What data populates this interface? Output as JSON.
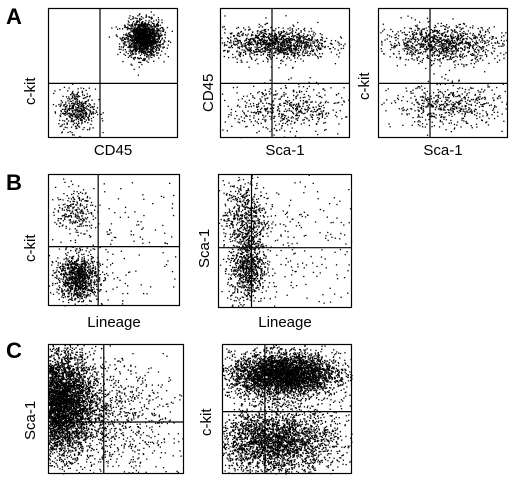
{
  "panels": [
    {
      "letter": "A"
    },
    {
      "letter": "B"
    },
    {
      "letter": "C"
    }
  ],
  "chart_data": [
    {
      "type": "scatter",
      "panel": "A",
      "xlabel": "CD45",
      "ylabel": "c-kit",
      "quadrant_gates": {
        "x": 0.4,
        "y": 0.42
      },
      "populations": [
        {
          "cx": 0.73,
          "cy": 0.77,
          "sx": 0.07,
          "sy": 0.07,
          "n": 1500
        },
        {
          "cx": 0.22,
          "cy": 0.22,
          "sx": 0.07,
          "sy": 0.08,
          "n": 420
        }
      ]
    },
    {
      "type": "scatter",
      "panel": "A",
      "xlabel": "Sca-1",
      "ylabel": "CD45",
      "quadrant_gates": {
        "x": 0.4,
        "y": 0.42
      },
      "populations": [
        {
          "cx": 0.43,
          "cy": 0.73,
          "sx": 0.2,
          "sy": 0.06,
          "n": 1100
        },
        {
          "cx": 0.5,
          "cy": 0.22,
          "sx": 0.23,
          "sy": 0.09,
          "n": 520
        }
      ]
    },
    {
      "type": "scatter",
      "panel": "A",
      "xlabel": "Sca-1",
      "ylabel": "c-kit",
      "quadrant_gates": {
        "x": 0.4,
        "y": 0.42
      },
      "populations": [
        {
          "cx": 0.5,
          "cy": 0.73,
          "sx": 0.22,
          "sy": 0.07,
          "n": 1000
        },
        {
          "cx": 0.55,
          "cy": 0.25,
          "sx": 0.22,
          "sy": 0.08,
          "n": 520
        }
      ]
    },
    {
      "type": "scatter",
      "panel": "B",
      "xlabel": "Lineage",
      "ylabel": "c-kit",
      "quadrant_gates": {
        "x": 0.38,
        "y": 0.45
      },
      "populations": [
        {
          "cx": 0.22,
          "cy": 0.22,
          "sx": 0.08,
          "sy": 0.09,
          "n": 1000
        },
        {
          "cx": 0.2,
          "cy": 0.72,
          "sx": 0.07,
          "sy": 0.08,
          "n": 220
        },
        {
          "cx": 0.55,
          "cy": 0.5,
          "sx": 0.28,
          "sy": 0.3,
          "n": 180
        }
      ]
    },
    {
      "type": "scatter",
      "panel": "B",
      "xlabel": "Lineage",
      "ylabel": "Sca-1",
      "quadrant_gates": {
        "x": 0.25,
        "y": 0.45
      },
      "populations": [
        {
          "cx": 0.22,
          "cy": 0.3,
          "sx": 0.07,
          "sy": 0.13,
          "n": 750
        },
        {
          "cx": 0.2,
          "cy": 0.68,
          "sx": 0.08,
          "sy": 0.13,
          "n": 550
        },
        {
          "cx": 0.5,
          "cy": 0.5,
          "sx": 0.28,
          "sy": 0.3,
          "n": 250
        }
      ]
    },
    {
      "type": "scatter",
      "panel": "C",
      "xlabel": "",
      "ylabel": "Sca-1",
      "quadrant_gates": {
        "x": 0.41,
        "y": 0.4
      },
      "populations": [
        {
          "cx": 0.06,
          "cy": 0.55,
          "sx": 0.14,
          "sy": 0.2,
          "n": 6000
        },
        {
          "cx": 0.4,
          "cy": 0.45,
          "sx": 0.2,
          "sy": 0.2,
          "n": 700
        },
        {
          "cx": 0.7,
          "cy": 0.4,
          "sx": 0.25,
          "sy": 0.3,
          "n": 250
        }
      ]
    },
    {
      "type": "scatter",
      "panel": "C",
      "xlabel": "",
      "ylabel": "c-kit",
      "quadrant_gates": {
        "x": 0.33,
        "y": 0.48
      },
      "populations": [
        {
          "cx": 0.47,
          "cy": 0.77,
          "sx": 0.2,
          "sy": 0.08,
          "n": 4000
        },
        {
          "cx": 0.4,
          "cy": 0.25,
          "sx": 0.23,
          "sy": 0.12,
          "n": 2600
        },
        {
          "cx": 0.5,
          "cy": 0.5,
          "sx": 0.3,
          "sy": 0.3,
          "n": 600
        }
      ]
    }
  ]
}
